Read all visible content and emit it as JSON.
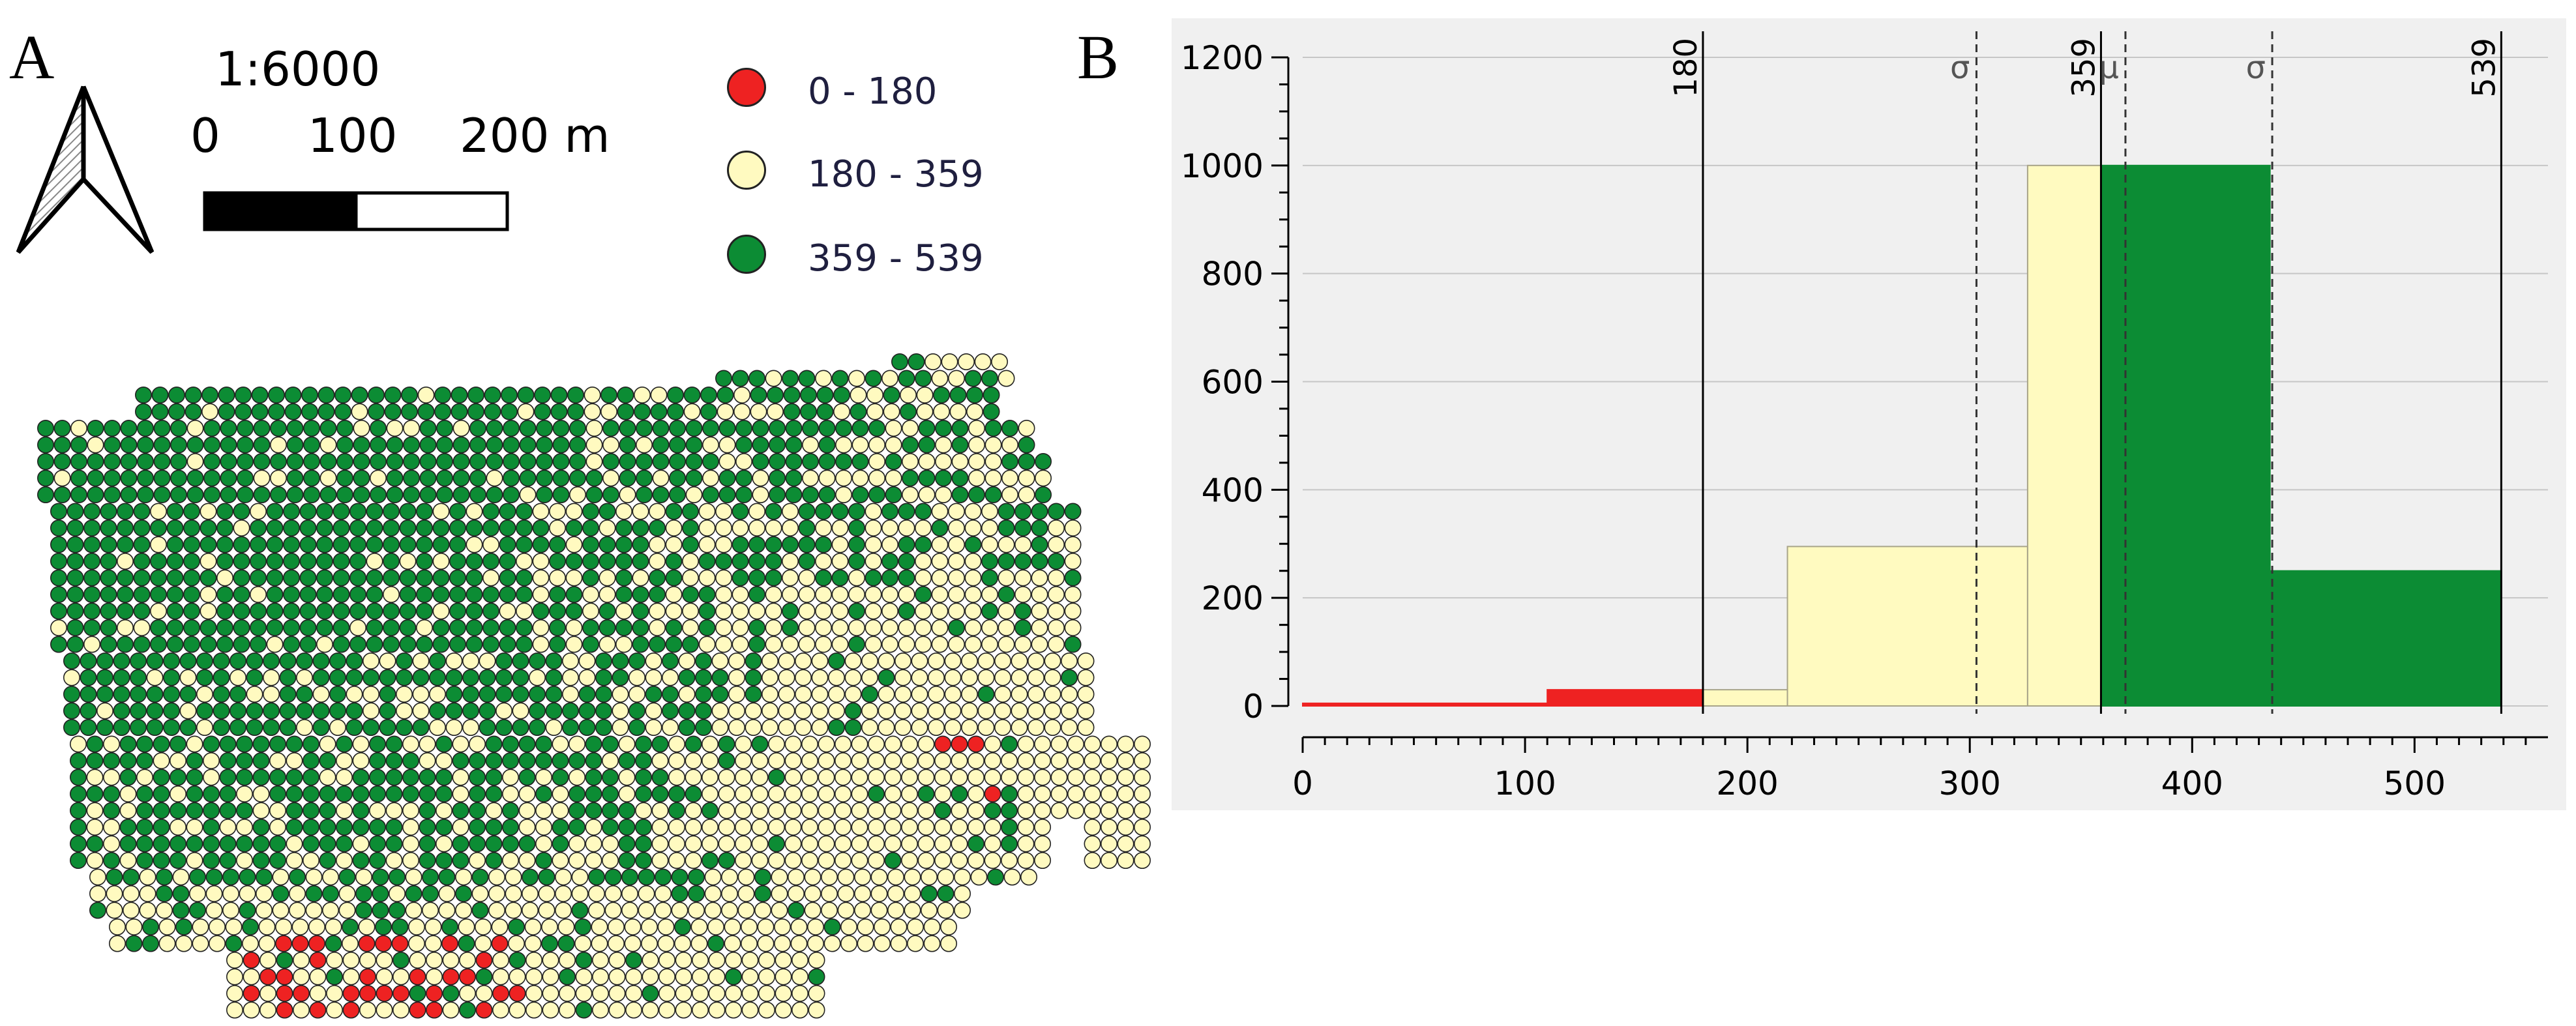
{
  "panel_labels": {
    "a": "A",
    "b": "B"
  },
  "colors": {
    "low": "#ee2222",
    "mid": "#fffac0",
    "high": "#0c8c34",
    "dot_stroke": "#222222",
    "plot_bg": "#f0f0f0"
  },
  "north_arrow": {
    "icon": "north-arrow-icon"
  },
  "scale": {
    "ratio": "1:6000",
    "tick0": "0",
    "tick1": "100",
    "tick2": "200 m"
  },
  "legend": [
    {
      "label": "0 - 180",
      "color_key": "low"
    },
    {
      "label": "180 - 359",
      "color_key": "mid"
    },
    {
      "label": "359 - 539",
      "color_key": "high"
    }
  ],
  "chart_data": {
    "type": "bar",
    "title": "",
    "xlim": [
      0,
      560
    ],
    "ylim": [
      0,
      1200
    ],
    "x_ticks": [
      0,
      100,
      200,
      300,
      400,
      500
    ],
    "y_ticks": [
      0,
      200,
      400,
      600,
      800,
      1000,
      1200
    ],
    "grid": true,
    "bins": [
      {
        "x0": 0,
        "x1": 110,
        "value": 5,
        "class": "low"
      },
      {
        "x0": 110,
        "x1": 180,
        "value": 30,
        "class": "low"
      },
      {
        "x0": 180,
        "x1": 218,
        "value": 30,
        "class": "mid"
      },
      {
        "x0": 218,
        "x1": 326,
        "value": 295,
        "class": "mid"
      },
      {
        "x0": 326,
        "x1": 359,
        "value": 1000,
        "class": "mid"
      },
      {
        "x0": 359,
        "x1": 435,
        "value": 1000,
        "class": "high"
      },
      {
        "x0": 435,
        "x1": 539,
        "value": 250,
        "class": "high"
      }
    ],
    "class_breaks": [
      {
        "x": 180,
        "label": "180"
      },
      {
        "x": 359,
        "label": "359"
      },
      {
        "x": 539,
        "label": "539"
      }
    ],
    "stat_lines": [
      {
        "x": 303,
        "label": "σ"
      },
      {
        "x": 370,
        "label": "μ"
      },
      {
        "x": 436,
        "label": "σ"
      }
    ]
  }
}
